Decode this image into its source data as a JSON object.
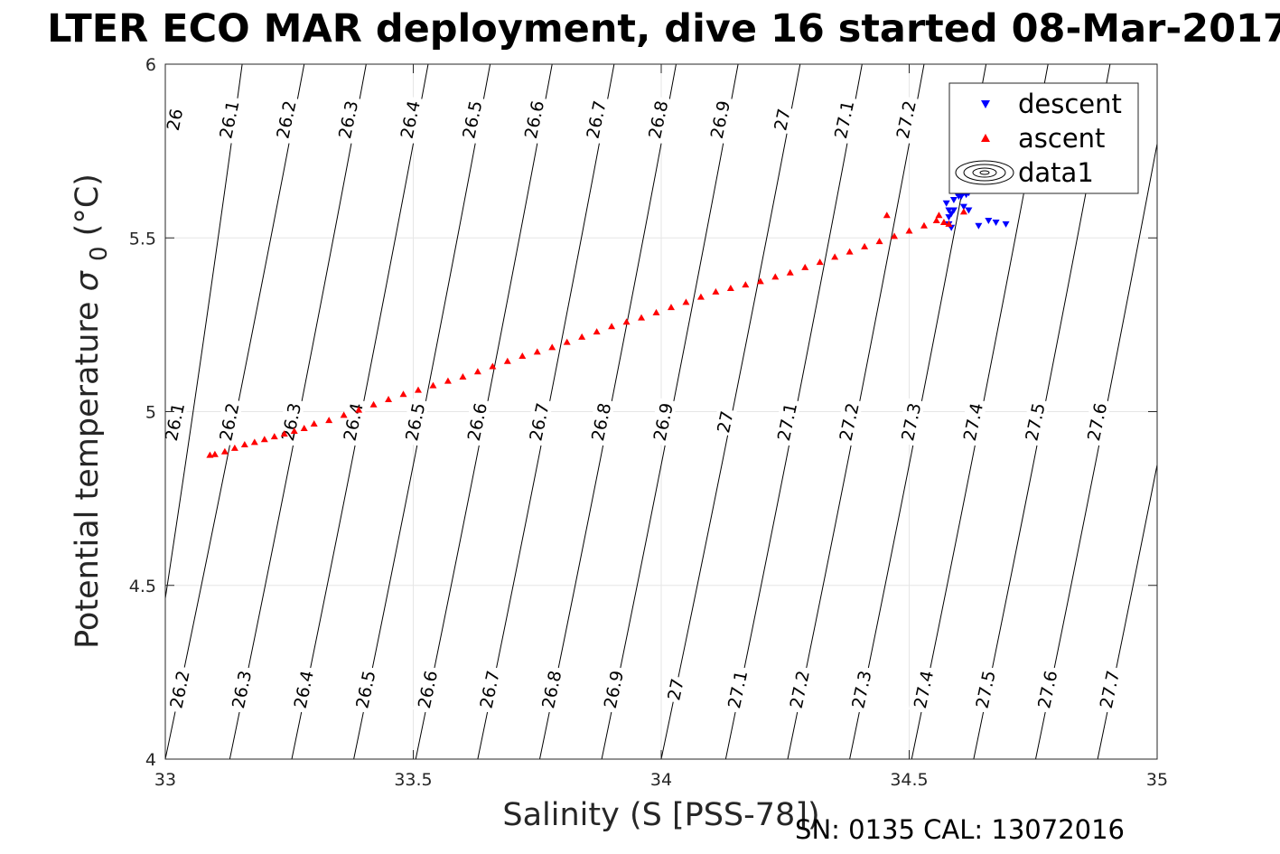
{
  "chart_data": {
    "type": "scatter",
    "title": "LTER ECO MAR deployment, dive 16 started 08-Mar-2017",
    "xlabel": "Salinity (S [PSS-78])",
    "ylabel": "Potential temperature",
    "ylabel_symbol": "σ",
    "ylabel_subscript": "0",
    "ylabel_unit": "(°C)",
    "xlim": [
      33,
      35
    ],
    "ylim": [
      4,
      6
    ],
    "x_ticks": [
      33,
      33.5,
      34,
      34.5,
      35
    ],
    "x_tick_labels": [
      "33",
      "33.5",
      "34",
      "34.5",
      "35"
    ],
    "y_ticks": [
      4,
      4.5,
      5,
      5.5,
      6
    ],
    "y_tick_labels": [
      "4",
      "4.5",
      "5",
      "5.5",
      "6"
    ],
    "grid": true,
    "legend_position": "top-right",
    "footer": "SN: 0135  CAL: 13072016",
    "series": [
      {
        "name": "descent",
        "marker": "triangle-down",
        "color": "#0000ff",
        "points": [
          [
            34.58,
            5.54
          ],
          [
            34.585,
            5.53
          ],
          [
            34.58,
            5.56
          ],
          [
            34.585,
            5.57
          ],
          [
            34.575,
            5.6
          ],
          [
            34.59,
            5.61
          ],
          [
            34.6,
            5.62
          ],
          [
            34.61,
            5.63
          ],
          [
            34.605,
            5.62
          ],
          [
            34.615,
            5.625
          ],
          [
            34.62,
            5.63
          ],
          [
            34.625,
            5.64
          ],
          [
            34.6,
            5.625
          ],
          [
            34.59,
            5.58
          ],
          [
            34.61,
            5.59
          ],
          [
            34.62,
            5.58
          ],
          [
            34.64,
            5.535
          ],
          [
            34.66,
            5.55
          ],
          [
            34.675,
            5.545
          ],
          [
            34.695,
            5.54
          ],
          [
            34.58,
            5.58
          ],
          [
            34.595,
            5.63
          ]
        ]
      },
      {
        "name": "ascent",
        "marker": "triangle-up",
        "color": "#ff0000",
        "points": [
          [
            33.09,
            4.875
          ],
          [
            33.1,
            4.877
          ],
          [
            33.12,
            4.885
          ],
          [
            33.14,
            4.895
          ],
          [
            33.16,
            4.905
          ],
          [
            33.18,
            4.912
          ],
          [
            33.2,
            4.92
          ],
          [
            33.22,
            4.928
          ],
          [
            33.24,
            4.936
          ],
          [
            33.26,
            4.944
          ],
          [
            33.28,
            4.952
          ],
          [
            33.3,
            4.965
          ],
          [
            33.33,
            4.975
          ],
          [
            33.36,
            4.99
          ],
          [
            33.39,
            5.005
          ],
          [
            33.42,
            5.02
          ],
          [
            33.45,
            5.035
          ],
          [
            33.48,
            5.05
          ],
          [
            33.51,
            5.062
          ],
          [
            33.54,
            5.075
          ],
          [
            33.57,
            5.088
          ],
          [
            33.6,
            5.1
          ],
          [
            33.63,
            5.115
          ],
          [
            33.66,
            5.13
          ],
          [
            33.69,
            5.145
          ],
          [
            33.72,
            5.16
          ],
          [
            33.75,
            5.172
          ],
          [
            33.78,
            5.185
          ],
          [
            33.81,
            5.2
          ],
          [
            33.84,
            5.215
          ],
          [
            33.87,
            5.23
          ],
          [
            33.9,
            5.245
          ],
          [
            33.93,
            5.258
          ],
          [
            33.96,
            5.27
          ],
          [
            33.99,
            5.285
          ],
          [
            34.02,
            5.3
          ],
          [
            34.05,
            5.315
          ],
          [
            34.08,
            5.33
          ],
          [
            34.11,
            5.345
          ],
          [
            34.14,
            5.355
          ],
          [
            34.17,
            5.365
          ],
          [
            34.2,
            5.375
          ],
          [
            34.23,
            5.388
          ],
          [
            34.26,
            5.4
          ],
          [
            34.29,
            5.415
          ],
          [
            34.32,
            5.43
          ],
          [
            34.35,
            5.445
          ],
          [
            34.38,
            5.46
          ],
          [
            34.41,
            5.475
          ],
          [
            34.44,
            5.49
          ],
          [
            34.47,
            5.505
          ],
          [
            34.5,
            5.52
          ],
          [
            34.53,
            5.535
          ],
          [
            34.555,
            5.55
          ],
          [
            34.56,
            5.565
          ],
          [
            34.57,
            5.545
          ],
          [
            34.58,
            5.54
          ],
          [
            34.455,
            5.565
          ],
          [
            34.61,
            5.575
          ]
        ]
      },
      {
        "name": "data1",
        "marker": "contour"
      }
    ],
    "contours_top": [
      {
        "label": "26",
        "x_top": 33.04,
        "x_bottom": 32.83
      },
      {
        "label": "26.1",
        "x_top": 33.155,
        "x_bottom": 32.95
      },
      {
        "label": "26.2",
        "x_top": 33.28,
        "x_bottom": 33.075
      },
      {
        "label": "26.3",
        "x_top": 33.405,
        "x_bottom": 33.2
      },
      {
        "label": "26.4",
        "x_top": 33.53,
        "x_bottom": 33.325
      },
      {
        "label": "26.5",
        "x_top": 33.655,
        "x_bottom": 33.45
      },
      {
        "label": "26.6",
        "x_top": 33.78,
        "x_bottom": 33.575
      },
      {
        "label": "26.7",
        "x_top": 33.905,
        "x_bottom": 33.7
      },
      {
        "label": "26.8",
        "x_top": 34.03,
        "x_bottom": 33.825
      },
      {
        "label": "26.9",
        "x_top": 34.155,
        "x_bottom": 33.95
      },
      {
        "label": "27",
        "x_top": 34.28,
        "x_bottom": 34.075
      },
      {
        "label": "27.1",
        "x_top": 34.405,
        "x_bottom": 34.2
      },
      {
        "label": "27.2",
        "x_top": 34.53,
        "x_bottom": 34.325
      }
    ],
    "contours_full": [
      {
        "label": "26.1",
        "x_top": 33.155,
        "x_bottom": 32.95
      },
      {
        "label": "26.2",
        "x_top": 33.28,
        "x_bottom": 33.0
      },
      {
        "label": "26.3",
        "x_top": 33.405,
        "x_bottom": 33.13
      },
      {
        "label": "26.4",
        "x_top": 33.53,
        "x_bottom": 33.255
      },
      {
        "label": "26.5",
        "x_top": 33.655,
        "x_bottom": 33.38
      },
      {
        "label": "26.6",
        "x_top": 33.78,
        "x_bottom": 33.505
      },
      {
        "label": "26.7",
        "x_top": 33.905,
        "x_bottom": 33.63
      },
      {
        "label": "26.8",
        "x_top": 34.03,
        "x_bottom": 33.755
      },
      {
        "label": "26.9",
        "x_top": 34.155,
        "x_bottom": 33.88
      },
      {
        "label": "27",
        "x_top": 34.28,
        "x_bottom": 34.0
      },
      {
        "label": "27.1",
        "x_top": 34.405,
        "x_bottom": 34.13
      },
      {
        "label": "27.2",
        "x_top": 34.53,
        "x_bottom": 34.255
      },
      {
        "label": "27.3",
        "x_top": 34.655,
        "x_bottom": 34.38
      },
      {
        "label": "27.4",
        "x_top": 34.78,
        "x_bottom": 34.505
      },
      {
        "label": "27.5",
        "x_top": 34.905,
        "x_bottom": 34.63
      },
      {
        "label": "27.6",
        "x_top": 35.03,
        "x_bottom": 34.755
      },
      {
        "label": "27.7",
        "x_top": 35.155,
        "x_bottom": 34.88
      }
    ],
    "contour_label_rows": [
      {
        "y": 5.84,
        "labels": [
          {
            "text": "26",
            "x": 33.02
          },
          {
            "text": "26.1",
            "x": 33.13
          },
          {
            "text": "26.2",
            "x": 33.245
          },
          {
            "text": "26.3",
            "x": 33.37
          },
          {
            "text": "26.4",
            "x": 33.495
          },
          {
            "text": "26.5",
            "x": 33.62
          },
          {
            "text": "26.6",
            "x": 33.745
          },
          {
            "text": "26.7",
            "x": 33.87
          },
          {
            "text": "26.8",
            "x": 33.995
          },
          {
            "text": "26.9",
            "x": 34.12
          },
          {
            "text": "27",
            "x": 34.245
          },
          {
            "text": "27.1",
            "x": 34.37
          },
          {
            "text": "27.2",
            "x": 34.495
          }
        ]
      },
      {
        "y": 4.97,
        "labels": [
          {
            "text": "26.1",
            "x": 33.02
          },
          {
            "text": "26.2",
            "x": 33.13
          },
          {
            "text": "26.3",
            "x": 33.255
          },
          {
            "text": "26.4",
            "x": 33.38
          },
          {
            "text": "26.5",
            "x": 33.505
          },
          {
            "text": "26.6",
            "x": 33.63
          },
          {
            "text": "26.7",
            "x": 33.755
          },
          {
            "text": "26.8",
            "x": 33.88
          },
          {
            "text": "26.9",
            "x": 34.005
          },
          {
            "text": "27",
            "x": 34.13
          },
          {
            "text": "27.1",
            "x": 34.255
          },
          {
            "text": "27.2",
            "x": 34.38
          },
          {
            "text": "27.3",
            "x": 34.505
          },
          {
            "text": "27.4",
            "x": 34.63
          },
          {
            "text": "27.5",
            "x": 34.755
          },
          {
            "text": "27.6",
            "x": 34.88
          }
        ]
      },
      {
        "y": 4.2,
        "labels": [
          {
            "text": "26.2",
            "x": 33.03
          },
          {
            "text": "26.3",
            "x": 33.155
          },
          {
            "text": "26.4",
            "x": 33.28
          },
          {
            "text": "26.5",
            "x": 33.405
          },
          {
            "text": "26.6",
            "x": 33.53
          },
          {
            "text": "26.7",
            "x": 33.655
          },
          {
            "text": "26.8",
            "x": 33.78
          },
          {
            "text": "26.9",
            "x": 33.905
          },
          {
            "text": "27",
            "x": 34.03
          },
          {
            "text": "27.1",
            "x": 34.155
          },
          {
            "text": "27.2",
            "x": 34.28
          },
          {
            "text": "27.3",
            "x": 34.405
          },
          {
            "text": "27.4",
            "x": 34.53
          },
          {
            "text": "27.5",
            "x": 34.655
          },
          {
            "text": "27.6",
            "x": 34.78
          },
          {
            "text": "27.7",
            "x": 34.905
          }
        ]
      }
    ]
  }
}
